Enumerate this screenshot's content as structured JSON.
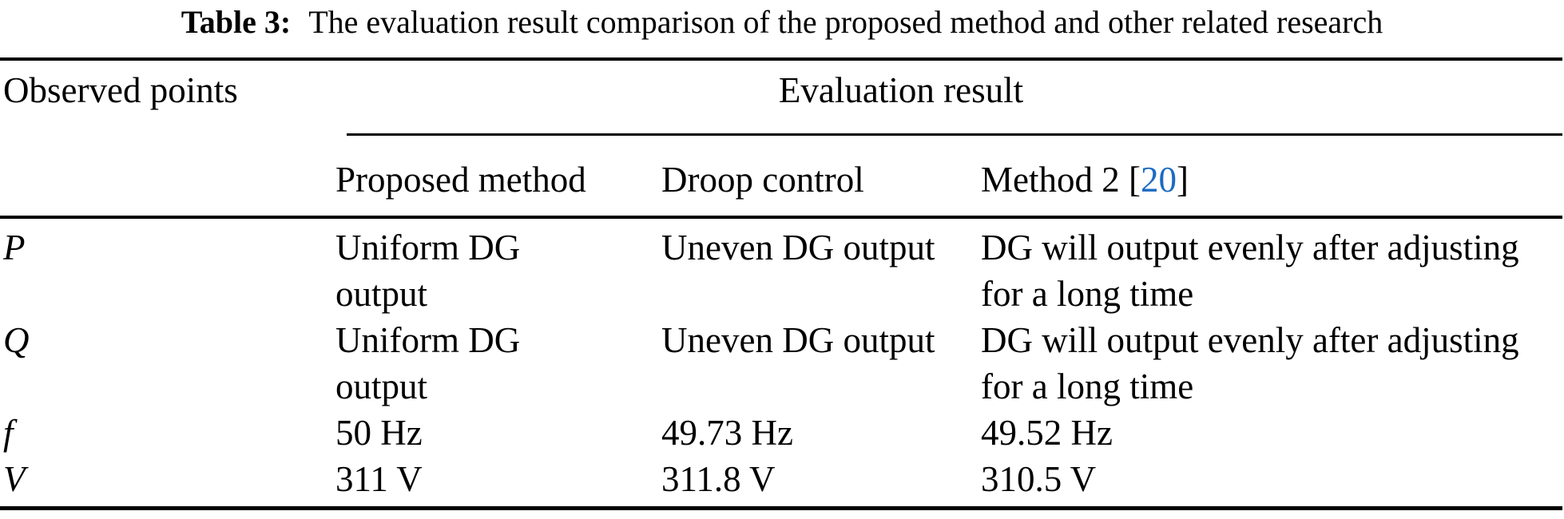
{
  "colors": {
    "citation_blue": "#1c6bc2",
    "text": "#000000",
    "background": "#ffffff"
  },
  "caption": {
    "label": "Table 3:",
    "text": "The evaluation result comparison of the proposed method and other related research"
  },
  "table": {
    "observed_points_header": "Observed points",
    "evaluation_result_header": "Evaluation result",
    "method_columns": {
      "proposed": "Proposed method",
      "droop": "Droop control",
      "method2_prefix": "Method 2 [",
      "method2_citation": "20",
      "method2_suffix": "]"
    },
    "rows": [
      {
        "point": "P",
        "proposed": "Uniform DG\noutput",
        "droop": "Uneven DG output",
        "method2": "DG will output evenly after adjusting\nfor a long time"
      },
      {
        "point": "Q",
        "proposed": "Uniform DG\noutput",
        "droop": "Uneven DG output",
        "method2": "DG will output evenly after adjusting\nfor a long time"
      },
      {
        "point": "f",
        "proposed": "50 Hz",
        "droop": "49.73 Hz",
        "method2": "49.52 Hz"
      },
      {
        "point": "V",
        "proposed": "311 V",
        "droop": "311.8 V",
        "method2": "310.5 V"
      }
    ]
  }
}
